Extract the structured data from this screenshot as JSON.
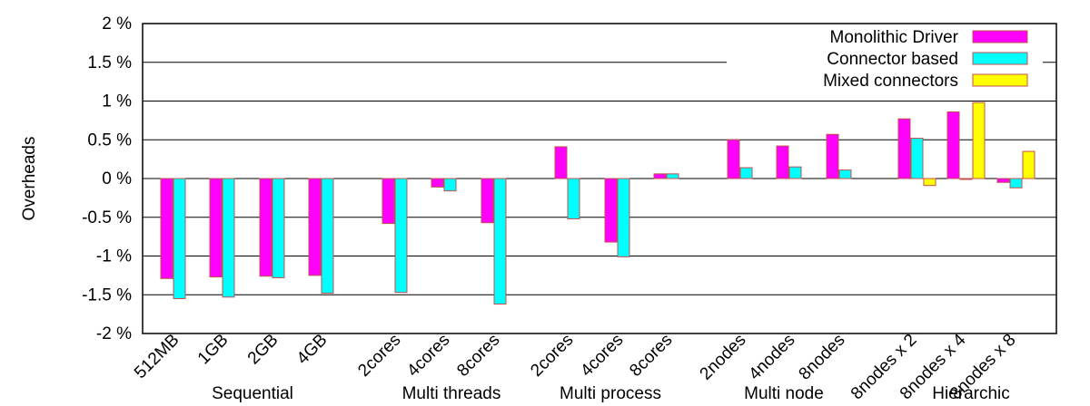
{
  "chart_data": {
    "type": "bar",
    "ylabel": "Overheads",
    "ylim": [
      -2,
      2
    ],
    "yticks": [
      -2,
      -1.5,
      -1,
      -0.5,
      0,
      0.5,
      1,
      1.5,
      2
    ],
    "ytick_labels": [
      "-2 %",
      "-1.5 %",
      "-1 %",
      "-0.5 %",
      "0 %",
      "0.5 %",
      "1 %",
      "1.5 %",
      "2 %"
    ],
    "grid": true,
    "legend_position": "top-right",
    "series": [
      {
        "name": "Monolithic Driver",
        "color": "#ff00ff",
        "values": [
          -1.29,
          -1.27,
          -1.26,
          -1.25,
          -0.58,
          -0.11,
          -0.57,
          0.41,
          -0.82,
          0.06,
          0.5,
          0.42,
          0.57,
          0.77,
          0.86,
          -0.05
        ]
      },
      {
        "name": "Connector based",
        "color": "#00ffff",
        "values": [
          -1.55,
          -1.53,
          -1.28,
          -1.48,
          -1.47,
          -0.16,
          -1.62,
          -0.52,
          -1.01,
          0.06,
          0.14,
          0.15,
          0.11,
          0.52,
          -0.01,
          -0.12
        ]
      },
      {
        "name": "Mixed connectors",
        "color": "#ffff00",
        "values": [
          null,
          null,
          null,
          null,
          null,
          null,
          null,
          null,
          null,
          null,
          null,
          null,
          null,
          -0.09,
          0.98,
          0.35
        ]
      }
    ],
    "groups": [
      {
        "label": "Sequential",
        "categories": [
          "512MB",
          "1GB",
          "2GB",
          "4GB"
        ]
      },
      {
        "label": "Multi threads",
        "categories": [
          "2cores",
          "4cores",
          "8cores"
        ]
      },
      {
        "label": "Multi process",
        "categories": [
          "2cores",
          "4cores",
          "8cores"
        ]
      },
      {
        "label": "Multi node",
        "categories": [
          "2nodes",
          "4nodes",
          "8nodes"
        ]
      },
      {
        "label": "Hierarchic",
        "categories": [
          "8nodes x 2",
          "8nodes x 4",
          "8nodes x 8"
        ]
      }
    ]
  }
}
